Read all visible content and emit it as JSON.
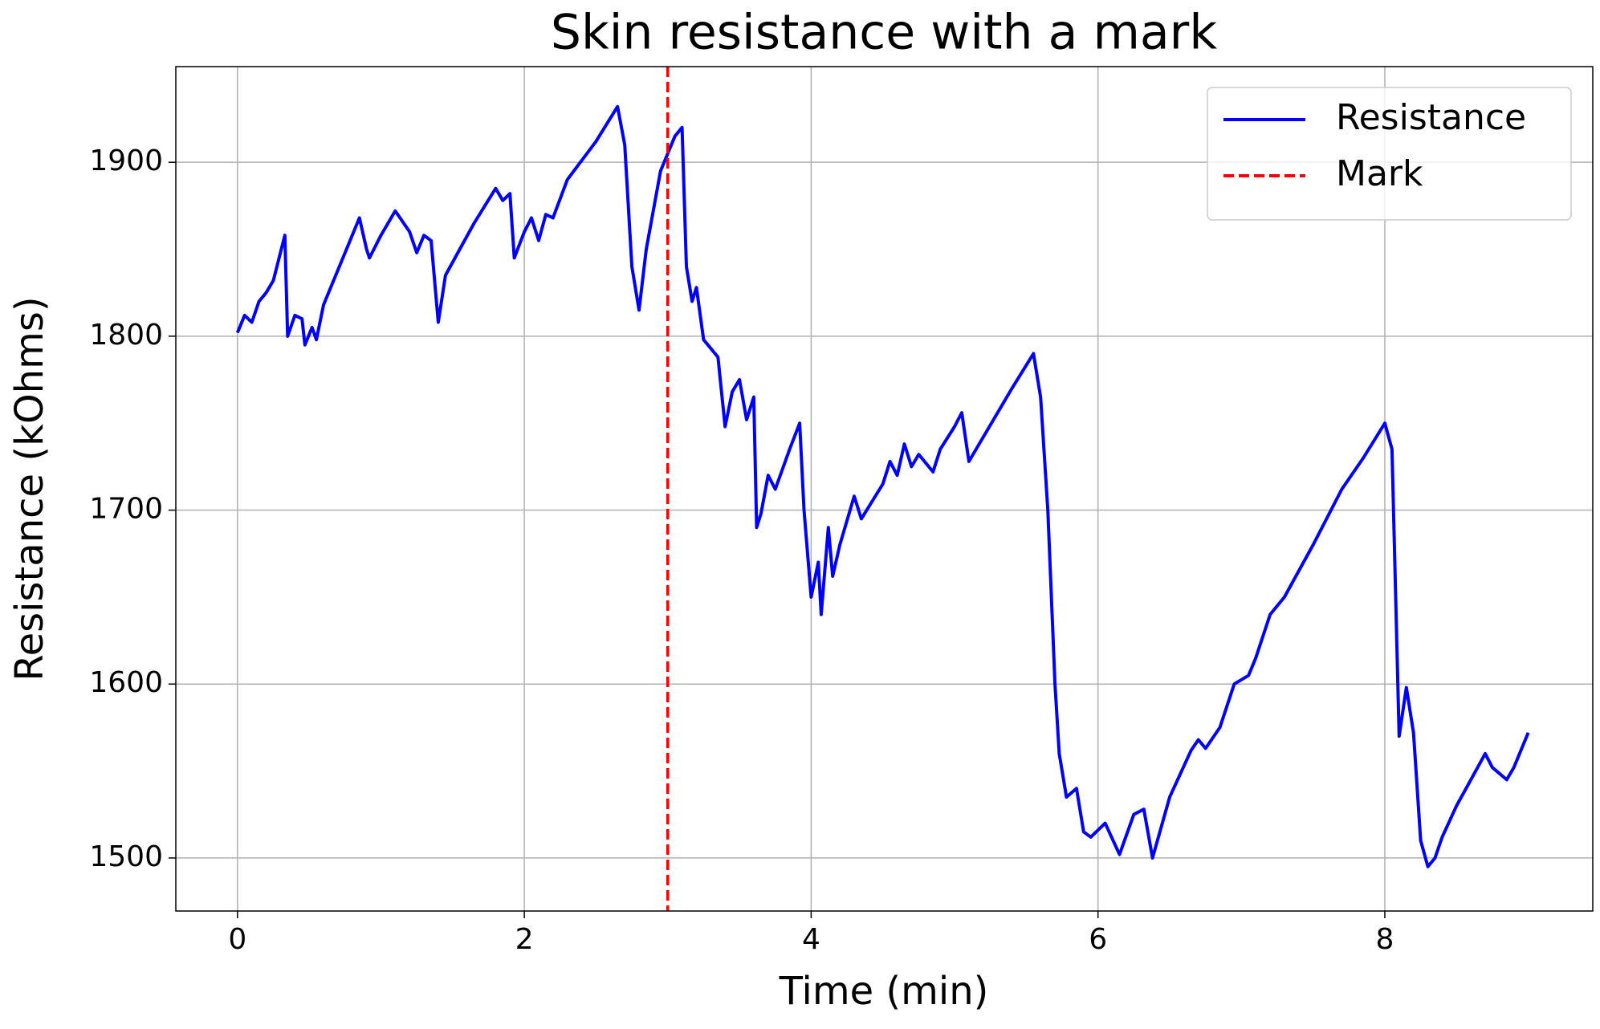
{
  "chart_data": {
    "type": "line",
    "title": "Skin resistance with a mark",
    "xlabel": "Time (min)",
    "ylabel": "Resistance (kOhms)",
    "xlim": [
      -0.43,
      9.45
    ],
    "ylim": [
      1469.5,
      1955
    ],
    "xticks": [
      0,
      2,
      4,
      6,
      8
    ],
    "yticks": [
      1500,
      1600,
      1700,
      1800,
      1900
    ],
    "grid": true,
    "legend": "upper right",
    "series": [
      {
        "name": "Resistance",
        "color": "#0000ff",
        "x": [
          0,
          0.05,
          0.1,
          0.15,
          0.2,
          0.25,
          0.33,
          0.35,
          0.4,
          0.45,
          0.47,
          0.52,
          0.55,
          0.6,
          0.7,
          0.85,
          0.9,
          0.92,
          1.0,
          1.1,
          1.2,
          1.25,
          1.3,
          1.35,
          1.4,
          1.45,
          1.55,
          1.65,
          1.8,
          1.85,
          1.9,
          1.93,
          2.0,
          2.05,
          2.1,
          2.15,
          2.2,
          2.3,
          2.5,
          2.65,
          2.7,
          2.75,
          2.8,
          2.85,
          2.95,
          3.05,
          3.1,
          3.13,
          3.17,
          3.2,
          3.25,
          3.35,
          3.4,
          3.45,
          3.5,
          3.55,
          3.6,
          3.62,
          3.65,
          3.7,
          3.75,
          3.85,
          3.92,
          3.95,
          4.0,
          4.05,
          4.07,
          4.12,
          4.15,
          4.2,
          4.3,
          4.35,
          4.5,
          4.55,
          4.6,
          4.65,
          4.7,
          4.75,
          4.85,
          4.9,
          5.0,
          5.05,
          5.1,
          5.2,
          5.4,
          5.55,
          5.6,
          5.65,
          5.7,
          5.73,
          5.78,
          5.85,
          5.9,
          5.95,
          6.05,
          6.15,
          6.25,
          6.32,
          6.38,
          6.5,
          6.65,
          6.7,
          6.75,
          6.85,
          6.95,
          7.05,
          7.1,
          7.2,
          7.3,
          7.5,
          7.7,
          7.85,
          8.0,
          8.05,
          8.1,
          8.15,
          8.2,
          8.25,
          8.3,
          8.35,
          8.4,
          8.5,
          8.6,
          8.7,
          8.75,
          8.85,
          8.9,
          9.0
        ],
        "values": [
          1802,
          1812,
          1808,
          1820,
          1825,
          1832,
          1858,
          1800,
          1812,
          1810,
          1795,
          1805,
          1798,
          1818,
          1838,
          1868,
          1850,
          1845,
          1858,
          1872,
          1860,
          1848,
          1858,
          1855,
          1808,
          1835,
          1850,
          1865,
          1885,
          1878,
          1882,
          1845,
          1860,
          1868,
          1855,
          1870,
          1868,
          1890,
          1912,
          1932,
          1910,
          1840,
          1815,
          1850,
          1895,
          1915,
          1920,
          1840,
          1820,
          1828,
          1798,
          1788,
          1748,
          1768,
          1775,
          1752,
          1765,
          1690,
          1698,
          1720,
          1712,
          1735,
          1750,
          1700,
          1650,
          1670,
          1640,
          1690,
          1662,
          1680,
          1708,
          1695,
          1715,
          1728,
          1720,
          1738,
          1725,
          1732,
          1722,
          1735,
          1748,
          1756,
          1728,
          1742,
          1770,
          1790,
          1765,
          1700,
          1600,
          1560,
          1535,
          1540,
          1515,
          1512,
          1520,
          1502,
          1525,
          1528,
          1500,
          1535,
          1562,
          1568,
          1563,
          1575,
          1600,
          1605,
          1615,
          1640,
          1650,
          1680,
          1712,
          1730,
          1750,
          1735,
          1570,
          1598,
          1572,
          1510,
          1495,
          1500,
          1512,
          1530,
          1545,
          1560,
          1552,
          1545,
          1552,
          1572
        ]
      }
    ],
    "mark": {
      "name": "Mark",
      "color": "#ff0000",
      "x": 3
    }
  }
}
